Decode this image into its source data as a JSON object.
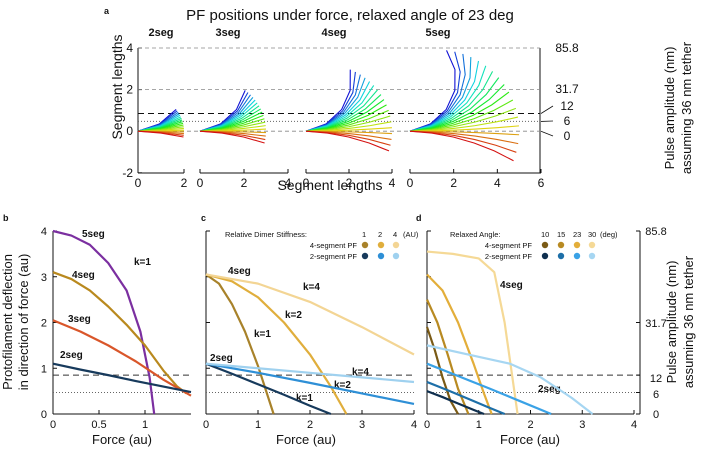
{
  "figure": {
    "title": "PF positions under force, relaxed angle of 23 deg",
    "panel_labels": [
      "a",
      "b",
      "c",
      "d"
    ]
  },
  "colors": {
    "axis": "#111111",
    "purple": "#7b2fa0",
    "gold": "#b9891e",
    "orange": "#d9562a",
    "navy": "#173a5c",
    "gold1": "#a8822a",
    "gold2": "#e0ae3c",
    "gold4": "#f3d594",
    "blue1": "#173a5c",
    "blue2": "#2e8fd6",
    "blue4": "#9fd1ef",
    "gold10": "#7a5a15",
    "gold15": "#b88a22",
    "gold23": "#e3ae3a",
    "gold30": "#f5d996",
    "blue10": "#0f2f4f",
    "blue15": "#1d6fa8",
    "blue23": "#3aa2e6",
    "blue30": "#a6d6f2"
  },
  "chart_data": [
    {
      "panel": "a",
      "type": "line",
      "title": "PF positions under force, relaxed angle of 23 deg",
      "xlabel": "Segment lengths",
      "ylabel": "Segment lengths",
      "right_label_line1": "Pulse amplitude (nm)",
      "right_label_line2": "assuming 36 nm tether",
      "ylim": [
        -2,
        4
      ],
      "y_ticks": [
        "-2",
        "0",
        "2",
        "4"
      ],
      "right_ticks": [
        "85.8",
        "31.7",
        "12",
        "6",
        "0"
      ],
      "subplots": [
        {
          "label": "2seg",
          "segments": 2,
          "xlim": [
            0,
            2
          ],
          "x_ticks": [
            "0",
            "2"
          ]
        },
        {
          "label": "3seg",
          "segments": 3,
          "xlim": [
            0,
            4
          ],
          "x_ticks": [
            "0",
            "2",
            "4"
          ]
        },
        {
          "label": "4seg",
          "segments": 4,
          "xlim": [
            0,
            4
          ],
          "x_ticks": [
            "0",
            "2",
            "4"
          ]
        },
        {
          "label": "5seg",
          "segments": 5,
          "xlim": [
            0,
            6
          ],
          "x_ticks": [
            "0",
            "2",
            "4",
            "6"
          ]
        }
      ],
      "reference_levels": [
        4,
        2,
        0.85,
        0.47,
        0
      ],
      "relaxed_angle_deg": 23
    },
    {
      "panel": "b",
      "type": "line",
      "xlabel": "Force (au)",
      "ylabel_line1": "Protofilament deflection",
      "ylabel_line2": "in direction of force (au)",
      "xlim": [
        0,
        1.5
      ],
      "ylim": [
        0,
        4
      ],
      "x_ticks": [
        "0",
        "0.5",
        "1"
      ],
      "y_ticks": [
        "0",
        "1",
        "2",
        "3",
        "4"
      ],
      "annotation": "k=1",
      "reference_levels": [
        0.85,
        0.47
      ],
      "series": [
        {
          "name": "5seg",
          "color_key": "purple",
          "x": [
            0,
            0.2,
            0.4,
            0.6,
            0.8,
            0.95,
            1.05,
            1.1
          ],
          "y": [
            4.0,
            3.9,
            3.7,
            3.3,
            2.7,
            1.8,
            0.8,
            0.0
          ]
        },
        {
          "name": "4seg",
          "color_key": "gold",
          "x": [
            0,
            0.2,
            0.4,
            0.6,
            0.8,
            1.0,
            1.2,
            1.35,
            1.45
          ],
          "y": [
            3.1,
            2.95,
            2.7,
            2.35,
            1.95,
            1.5,
            0.95,
            0.6,
            0.45
          ]
        },
        {
          "name": "3seg",
          "color_key": "orange",
          "x": [
            0,
            0.3,
            0.6,
            0.9,
            1.2,
            1.5
          ],
          "y": [
            2.05,
            1.8,
            1.5,
            1.15,
            0.75,
            0.4
          ]
        },
        {
          "name": "2seg",
          "color_key": "navy",
          "x": [
            0,
            0.3,
            0.6,
            0.9,
            1.2,
            1.5
          ],
          "y": [
            1.1,
            0.97,
            0.85,
            0.72,
            0.6,
            0.48
          ]
        }
      ]
    },
    {
      "panel": "c",
      "type": "line",
      "xlabel": "Force (au)",
      "xlim": [
        0,
        4
      ],
      "ylim": [
        0,
        4
      ],
      "x_ticks": [
        "0",
        "1",
        "2",
        "3",
        "4"
      ],
      "legend_title": "Relative Dimer Stiffness:",
      "legend_values": [
        "1",
        "2",
        "4",
        "(AU)"
      ],
      "legend_rows": [
        "4-segment PF",
        "2-segment PF"
      ],
      "reference_levels": [
        0.85,
        0.47
      ],
      "labels": [
        "4seg",
        "2seg",
        "k=1",
        "k=2",
        "k=4",
        "k=4",
        "k=2",
        "k=1"
      ],
      "series": [
        {
          "name": "4seg k=1",
          "color_key": "gold1",
          "x": [
            0,
            0.25,
            0.5,
            0.75,
            1.0,
            1.2,
            1.3
          ],
          "y": [
            3.05,
            2.85,
            2.4,
            1.8,
            1.05,
            0.35,
            0.0
          ]
        },
        {
          "name": "4seg k=2",
          "color_key": "gold2",
          "x": [
            0,
            0.5,
            1.0,
            1.5,
            2.0,
            2.4,
            2.7
          ],
          "y": [
            3.05,
            2.9,
            2.55,
            2.0,
            1.3,
            0.6,
            0.0
          ]
        },
        {
          "name": "4seg k=4",
          "color_key": "gold4",
          "x": [
            0,
            1.0,
            2.0,
            3.0,
            4.0
          ],
          "y": [
            3.05,
            2.85,
            2.45,
            1.9,
            1.3
          ]
        },
        {
          "name": "2seg k=1",
          "color_key": "blue1",
          "x": [
            0,
            0.5,
            1.0,
            1.5,
            2.0,
            2.4
          ],
          "y": [
            1.1,
            0.88,
            0.65,
            0.42,
            0.18,
            0.0
          ]
        },
        {
          "name": "2seg k=2",
          "color_key": "blue2",
          "x": [
            0,
            1.0,
            2.0,
            3.0,
            4.0
          ],
          "y": [
            1.1,
            0.9,
            0.68,
            0.45,
            0.22
          ]
        },
        {
          "name": "2seg k=4",
          "color_key": "blue4",
          "x": [
            0,
            1.0,
            2.0,
            3.0,
            4.0
          ],
          "y": [
            1.1,
            1.0,
            0.9,
            0.8,
            0.7
          ]
        }
      ]
    },
    {
      "panel": "d",
      "type": "line",
      "xlabel": "Force (au)",
      "right_label_line1": "Pulse amplitude (nm)",
      "right_label_line2": "assuming 36 nm tether",
      "xlim": [
        0,
        4
      ],
      "ylim": [
        0,
        4
      ],
      "x_ticks": [
        "0",
        "1",
        "2",
        "3",
        "4"
      ],
      "right_ticks": [
        "85.8",
        "31.7",
        "12",
        "6",
        "0"
      ],
      "legend_title": "Relaxed Angle:",
      "legend_values": [
        "10",
        "15",
        "23",
        "30",
        "(deg)"
      ],
      "legend_rows": [
        "4-segment PF",
        "2-segment PF"
      ],
      "reference_levels": [
        0.85,
        0.47
      ],
      "labels": [
        "4seg",
        "2seg"
      ],
      "series": [
        {
          "name": "4seg 10deg",
          "color_key": "gold10",
          "x": [
            0,
            0.15,
            0.3,
            0.45,
            0.6
          ],
          "y": [
            1.9,
            1.4,
            0.8,
            0.3,
            0.0
          ]
        },
        {
          "name": "4seg 15deg",
          "color_key": "gold15",
          "x": [
            0,
            0.2,
            0.4,
            0.6,
            0.8
          ],
          "y": [
            2.5,
            2.0,
            1.3,
            0.55,
            0.0
          ]
        },
        {
          "name": "4seg 23deg",
          "color_key": "gold23",
          "x": [
            0,
            0.3,
            0.6,
            0.9,
            1.1,
            1.25
          ],
          "y": [
            3.05,
            2.7,
            2.0,
            1.1,
            0.45,
            0.0
          ]
        },
        {
          "name": "4seg 30deg",
          "color_key": "gold30",
          "x": [
            0,
            0.5,
            1.0,
            1.3,
            1.5,
            1.65,
            1.75
          ],
          "y": [
            3.55,
            3.5,
            3.4,
            3.1,
            2.0,
            0.8,
            0.0
          ]
        },
        {
          "name": "2seg 10deg",
          "color_key": "blue10",
          "x": [
            0,
            0.3,
            0.6,
            0.9,
            1.1
          ],
          "y": [
            0.5,
            0.37,
            0.23,
            0.09,
            0.0
          ]
        },
        {
          "name": "2seg 15deg",
          "color_key": "blue15",
          "x": [
            0,
            0.4,
            0.8,
            1.2,
            1.5
          ],
          "y": [
            0.7,
            0.52,
            0.33,
            0.14,
            0.0
          ]
        },
        {
          "name": "2seg 23deg",
          "color_key": "blue23",
          "x": [
            0,
            0.6,
            1.2,
            1.8,
            2.4
          ],
          "y": [
            1.1,
            0.83,
            0.56,
            0.28,
            0.0
          ]
        },
        {
          "name": "2seg 30deg",
          "color_key": "blue30",
          "x": [
            0,
            0.8,
            1.6,
            2.2,
            2.8,
            3.2
          ],
          "y": [
            1.5,
            1.3,
            1.1,
            0.8,
            0.35,
            0.0
          ]
        }
      ]
    }
  ]
}
